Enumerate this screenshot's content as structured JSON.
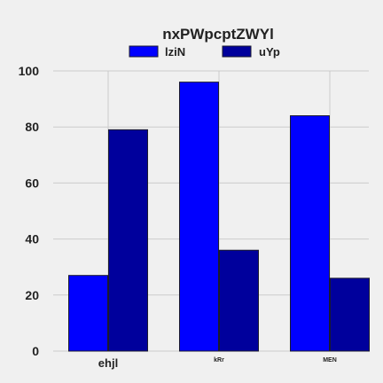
{
  "chart_data": {
    "type": "bar",
    "title": "nxPWpcptZWYl",
    "xlabel": "",
    "ylabel": "",
    "categories": [
      "ehjl",
      "kRr",
      "MEN"
    ],
    "series": [
      {
        "name": "lziN",
        "values": [
          27,
          96,
          84
        ],
        "color": "#0000ff"
      },
      {
        "name": "uYp",
        "values": [
          79,
          36,
          26
        ],
        "color": "#00009c"
      }
    ],
    "ylim": [
      0,
      100
    ],
    "yticks": [
      0,
      20,
      40,
      60,
      80,
      100
    ],
    "ytick_labels": [
      "0",
      "20",
      "40",
      "60",
      "80",
      "100"
    ],
    "grid": true,
    "legend": "top-center",
    "background": "#f0f0f0",
    "grid_color": "#cbcbcb"
  }
}
